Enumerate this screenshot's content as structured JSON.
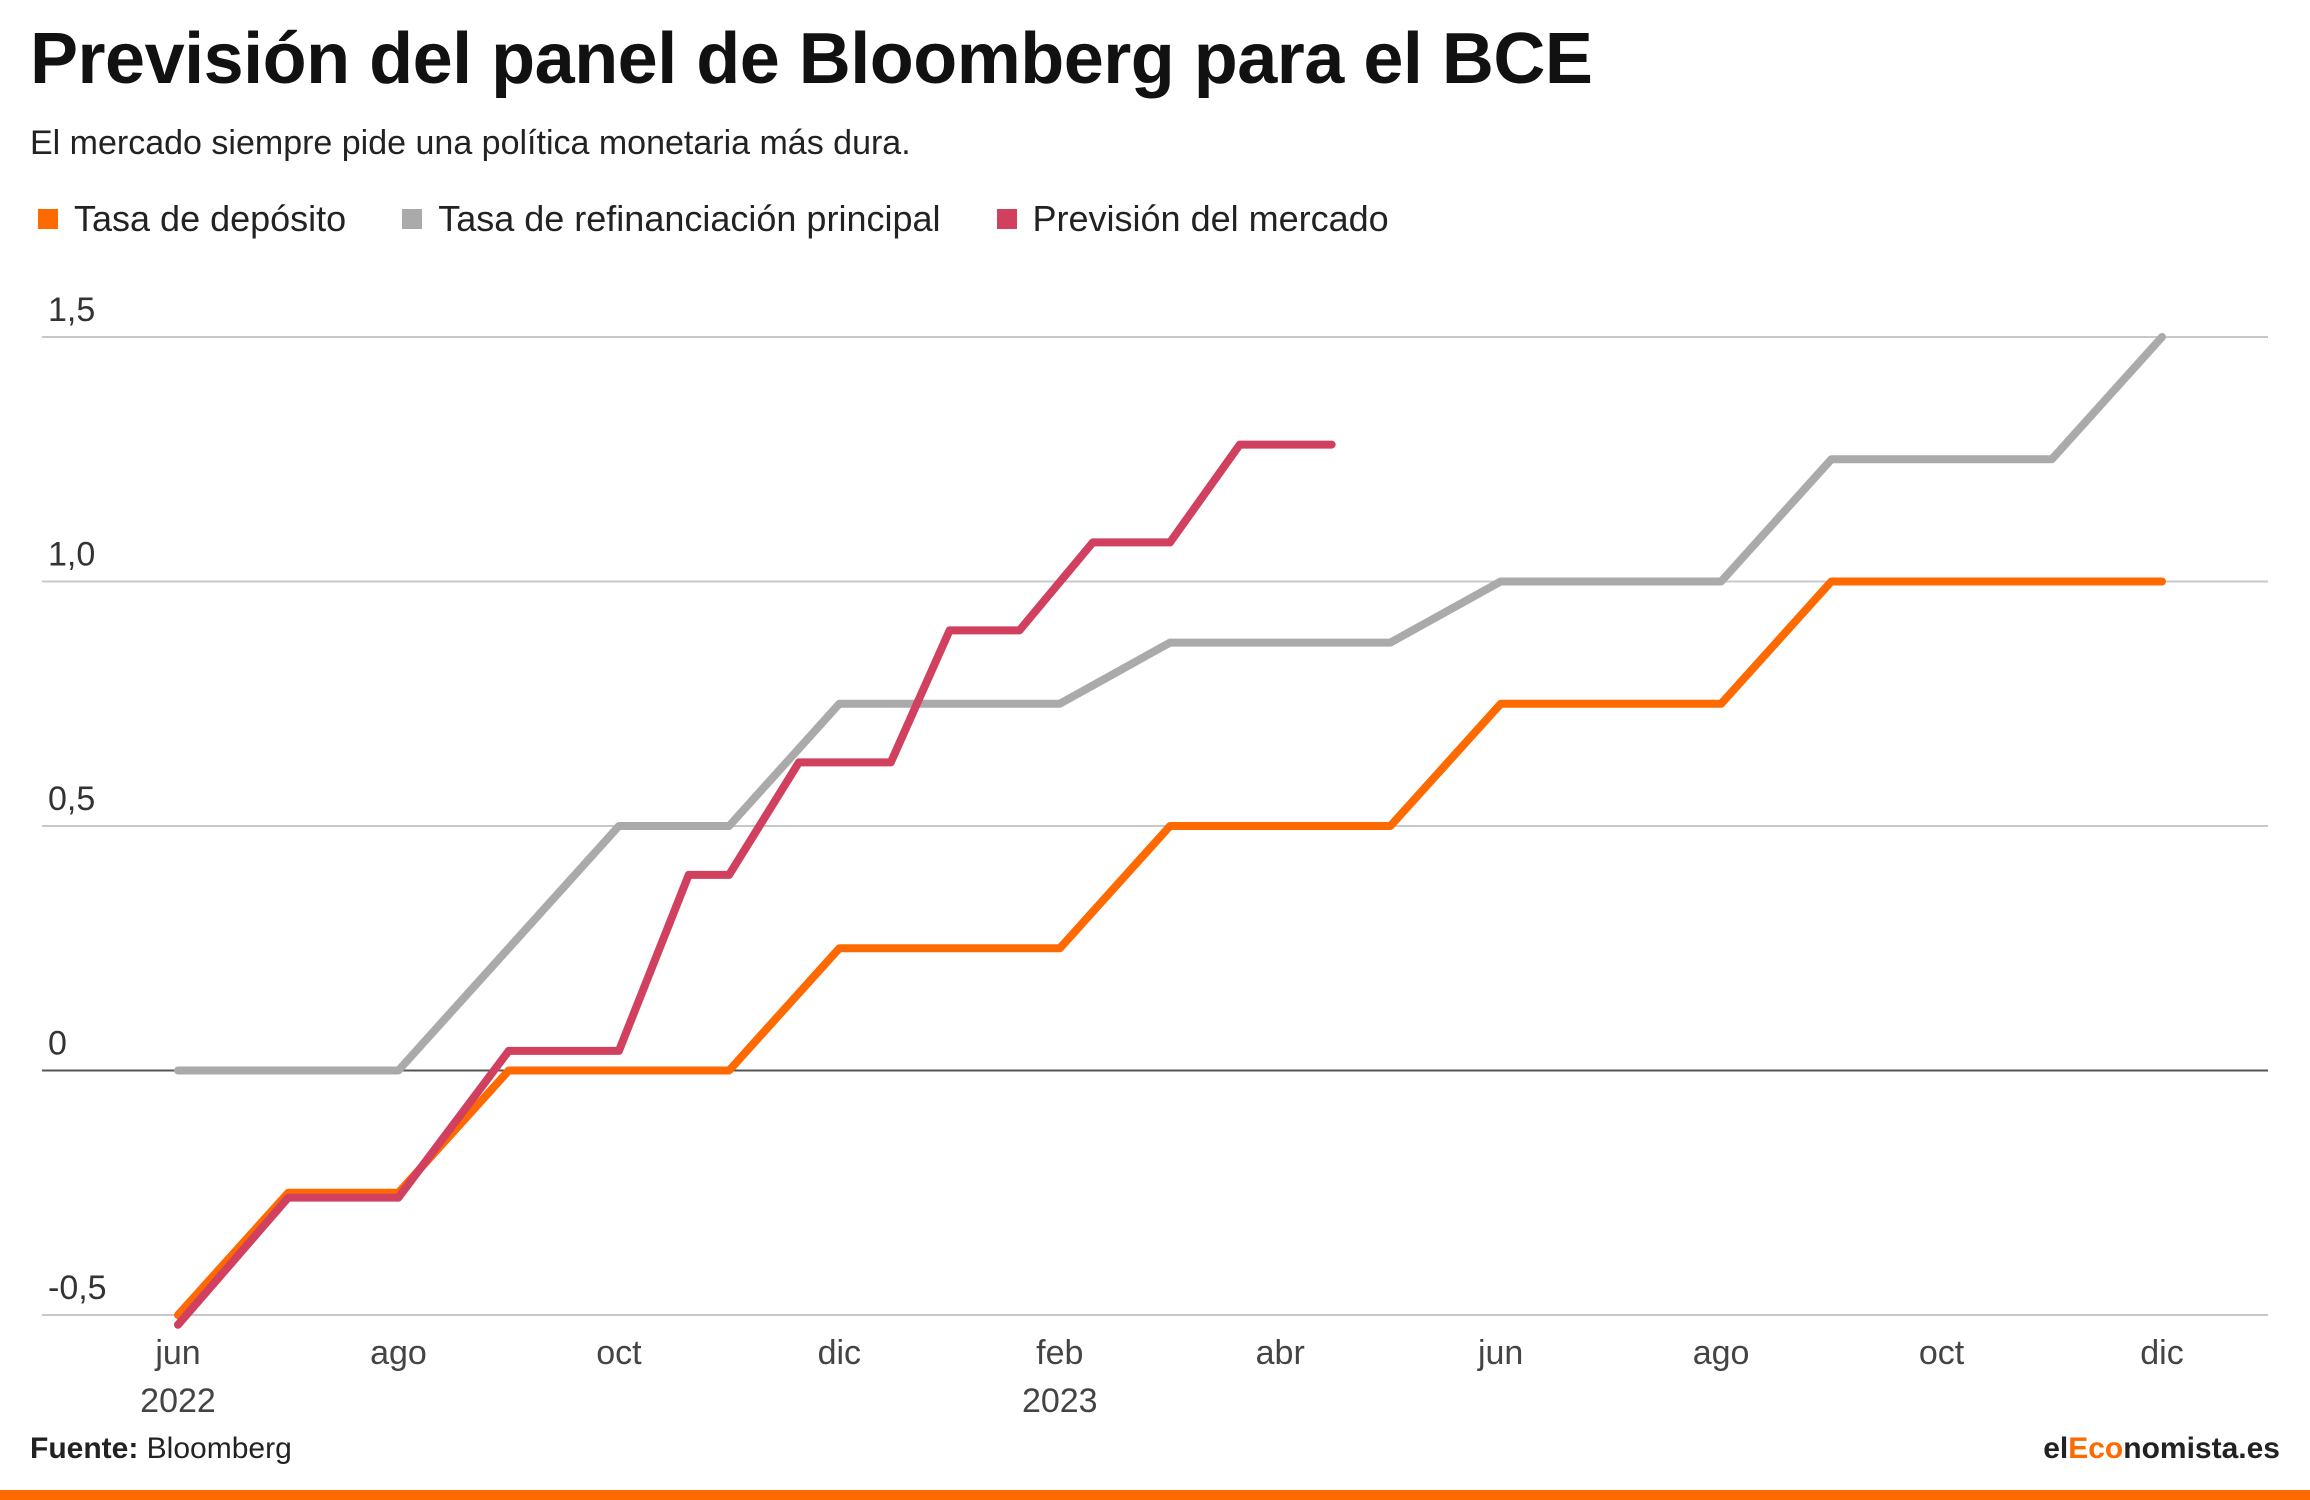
{
  "title": "Previsión del panel de Bloomberg para el BCE",
  "subtitle": "El mercado siempre pide una política monetaria más dura.",
  "source": {
    "label": "Fuente:",
    "text": "Bloomberg"
  },
  "brand": {
    "prefix": "el",
    "accent": "Eco",
    "suffix": "nomista.es"
  },
  "colors": {
    "accent": "#ff6a00"
  },
  "chart_data": {
    "type": "line",
    "title": "Previsión del panel de Bloomberg para el BCE",
    "subtitle": "El mercado siempre pide una política monetaria más dura.",
    "xlabel": "",
    "ylabel": "",
    "ylim": [
      -0.5,
      1.5
    ],
    "yticks": [
      {
        "value": 1.5,
        "label": "1,5"
      },
      {
        "value": 1.0,
        "label": "1,0"
      },
      {
        "value": 0.5,
        "label": "0,5"
      },
      {
        "value": 0,
        "label": "0"
      },
      {
        "value": -0.5,
        "label": "-0,5"
      }
    ],
    "xticks": [
      {
        "x": "2022-06",
        "label": "jun",
        "year": "2022"
      },
      {
        "x": "2022-08",
        "label": "ago",
        "year": ""
      },
      {
        "x": "2022-10",
        "label": "oct",
        "year": ""
      },
      {
        "x": "2022-12",
        "label": "dic",
        "year": ""
      },
      {
        "x": "2023-02",
        "label": "feb",
        "year": "2023"
      },
      {
        "x": "2023-04",
        "label": "abr",
        "year": ""
      },
      {
        "x": "2023-06",
        "label": "jun",
        "year": ""
      },
      {
        "x": "2023-08",
        "label": "ago",
        "year": ""
      },
      {
        "x": "2023-10",
        "label": "oct",
        "year": ""
      },
      {
        "x": "2023-12",
        "label": "dic",
        "year": ""
      }
    ],
    "legend_position": "top-left",
    "grid": true,
    "series": [
      {
        "name": "Tasa de refinanciación principal",
        "color": "#aaaaaa",
        "points": [
          [
            "2022-06",
            0
          ],
          [
            "2022-08",
            0
          ],
          [
            "2022-10",
            0.5
          ],
          [
            "2022-11",
            0.5
          ],
          [
            "2022-12",
            0.75
          ],
          [
            "2023-02",
            0.75
          ],
          [
            "2023-03",
            0.875
          ],
          [
            "2023-05",
            0.875
          ],
          [
            "2023-06",
            1.0
          ],
          [
            "2023-08",
            1.0
          ],
          [
            "2023-09",
            1.25
          ],
          [
            "2023-11",
            1.25
          ],
          [
            "2023-12",
            1.5
          ]
        ]
      },
      {
        "name": "Tasa de depósito",
        "color": "#ff6a00",
        "points": [
          [
            "2022-06",
            -0.5
          ],
          [
            "2022-07",
            -0.25
          ],
          [
            "2022-08",
            -0.25
          ],
          [
            "2022-09",
            0
          ],
          [
            "2022-11",
            0
          ],
          [
            "2022-12",
            0.25
          ],
          [
            "2023-02",
            0.25
          ],
          [
            "2023-03",
            0.5
          ],
          [
            "2023-05",
            0.5
          ],
          [
            "2023-06",
            0.75
          ],
          [
            "2023-08",
            0.75
          ],
          [
            "2023-09",
            1.0
          ],
          [
            "2023-12",
            1.0
          ]
        ]
      },
      {
        "name": "Previsión del mercado",
        "color": "#d1405e",
        "points": [
          [
            "2022-06",
            -0.52
          ],
          [
            "2022-07",
            -0.26
          ],
          [
            "2022-08",
            -0.26
          ],
          [
            "2022-09",
            0.04
          ],
          [
            "2022-10",
            0.04
          ],
          [
            "2022-10-20",
            0.4
          ],
          [
            "2022-11",
            0.4
          ],
          [
            "2022-11-20",
            0.63
          ],
          [
            "2022-12-15",
            0.63
          ],
          [
            "2023-01",
            0.9
          ],
          [
            "2023-01-20",
            0.9
          ],
          [
            "2023-02-10",
            1.08
          ],
          [
            "2023-03",
            1.08
          ],
          [
            "2023-03-20",
            1.28
          ],
          [
            "2023-04-15",
            1.28
          ]
        ]
      }
    ]
  }
}
